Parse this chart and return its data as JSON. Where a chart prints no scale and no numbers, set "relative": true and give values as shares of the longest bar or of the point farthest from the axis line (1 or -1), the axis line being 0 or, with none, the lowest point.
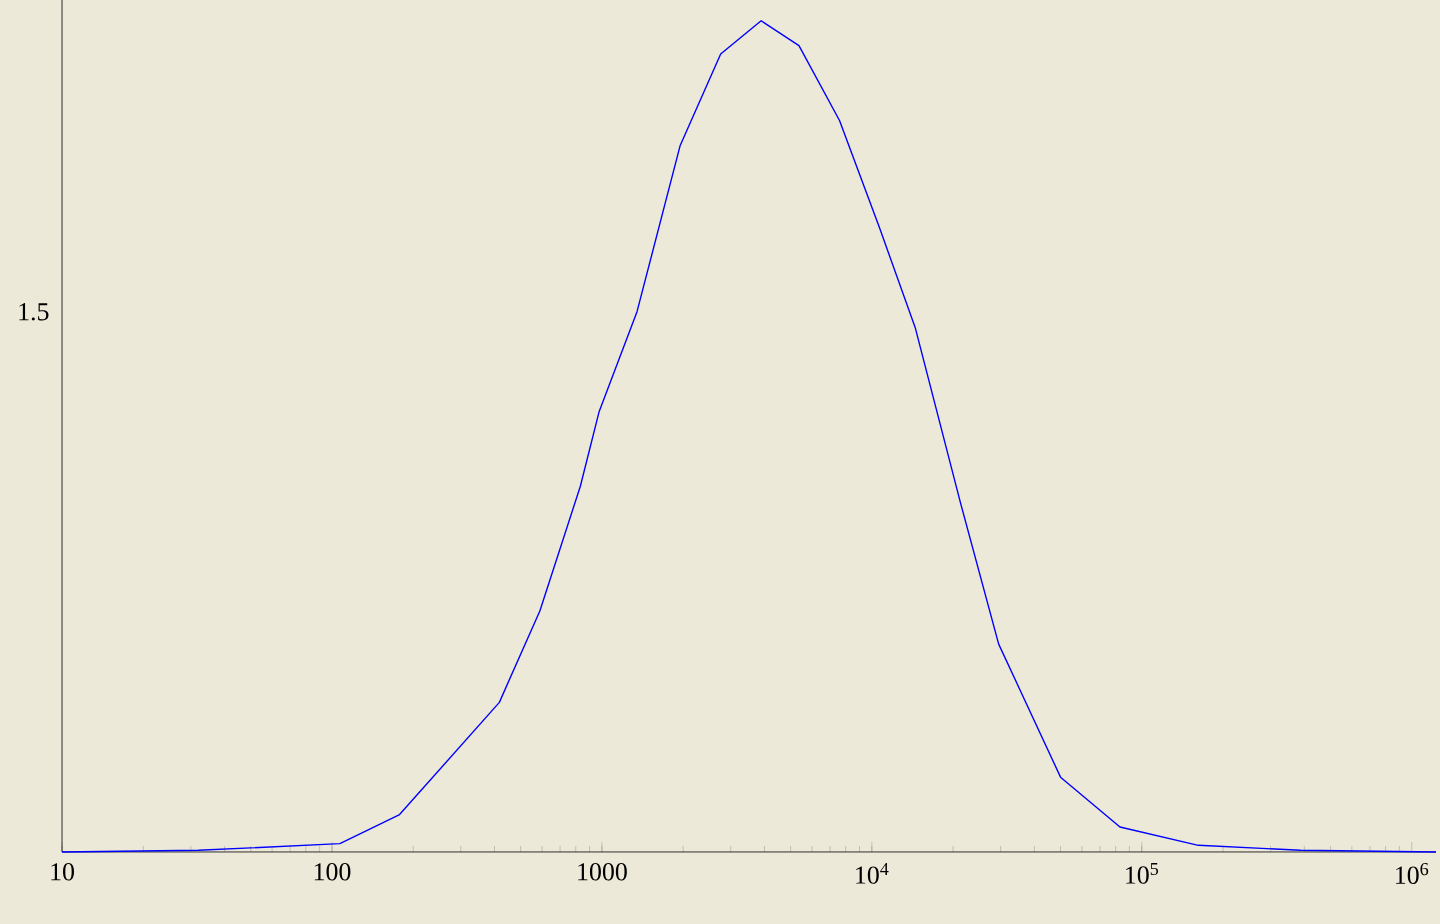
{
  "chart_data": {
    "type": "line",
    "relative": true,
    "log": "x",
    "color": "#0000ff",
    "x": [
      10,
      32,
      107,
      178,
      417,
      589,
      832,
      977,
      1349,
      1950,
      2754,
      3890,
      5370,
      7590,
      10700,
      14500,
      21300,
      29500,
      50000,
      83000,
      162000,
      387000,
      1230000
    ],
    "values": [
      0,
      0.002,
      0.01,
      0.045,
      0.18,
      0.29,
      0.44,
      0.53,
      0.65,
      0.85,
      0.96,
      1,
      0.97,
      0.88,
      0.75,
      0.63,
      0.42,
      0.25,
      0.09,
      0.03,
      0.008,
      0.002,
      0
    ],
    "xlim": [
      10,
      1230000
    ],
    "xticks": [
      10,
      100,
      1000,
      {
        "value": 10000,
        "label": "10$^{4}$"
      },
      {
        "value": 100000,
        "label": "10$^{5}$"
      },
      {
        "value": 1000000,
        "label": "10$^{6}$"
      }
    ],
    "annotations": [
      "1.5"
    ]
  }
}
